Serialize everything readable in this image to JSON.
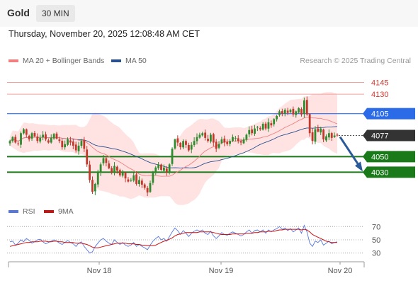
{
  "header": {
    "title": "Gold",
    "timeframe": "30 MIN"
  },
  "timestamp": "Thursday, November 20, 2025 12:08:48 AM CET",
  "legend": {
    "ma20_label": "MA 20 + Bollinger Bands",
    "ma50_label": "MA 50",
    "research": "Research © 2025 Trading Central",
    "rsi_label": "RSI",
    "ma9_label": "9MA"
  },
  "colors": {
    "ma20": "#f08080",
    "ma50": "#2a4f8f",
    "band_fill": "#ffe3e3",
    "candle_up": "#2e8b2e",
    "candle_down": "#c0392b",
    "resistance": "#d9322b",
    "pivot": "#2b6be8",
    "support": "#1a7a1a",
    "current": "#333333",
    "rsi": "#5577dd",
    "ma9": "#cc1111",
    "arrow": "#2a5a9a"
  },
  "chart_data": [
    {
      "type": "candlestick",
      "x_ticks": [
        "Nov 18",
        "Nov 19",
        "Nov 20"
      ],
      "price_levels": [
        {
          "label": "4145",
          "value": 4145,
          "kind": "resistance"
        },
        {
          "label": "4130",
          "value": 4130,
          "kind": "resistance"
        },
        {
          "label": "4105",
          "value": 4105,
          "kind": "pivot"
        },
        {
          "label": "4077",
          "value": 4077,
          "kind": "current"
        },
        {
          "label": "4050",
          "value": 4050,
          "kind": "support"
        },
        {
          "label": "4030",
          "value": 4030,
          "kind": "support"
        }
      ],
      "ylim": [
        3995,
        4160
      ],
      "forecast": {
        "from": 4077,
        "to": 4030
      },
      "close": [
        4070,
        4075,
        4068,
        4066,
        4080,
        4085,
        4078,
        4072,
        4080,
        4076,
        4070,
        4074,
        4078,
        4072,
        4068,
        4074,
        4079,
        4073,
        4070,
        4062,
        4066,
        4072,
        4068,
        4064,
        4058,
        4064,
        4070,
        4060,
        4040,
        4020,
        4005,
        4015,
        4030,
        4040,
        4048,
        4042,
        4035,
        4030,
        4038,
        4032,
        4026,
        4030,
        4022,
        4018,
        4020,
        4026,
        4015,
        4020,
        4014,
        4010,
        4004,
        4016,
        4030,
        4036,
        4040,
        4033,
        4036,
        4030,
        4040,
        4060,
        4072,
        4068,
        4062,
        4070,
        4065,
        4058,
        4065,
        4070,
        4075,
        4078,
        4080,
        4074,
        4070,
        4078,
        4068,
        4060,
        4066,
        4072,
        4068,
        4066,
        4070,
        4075,
        4074,
        4070,
        4068,
        4072,
        4078,
        4084,
        4080,
        4086,
        4088,
        4085,
        4092,
        4086,
        4094,
        4090,
        4098,
        4102,
        4108,
        4105,
        4110,
        4106,
        4110,
        4104,
        4108,
        4112,
        4104,
        4122,
        4104,
        4080,
        4070,
        4085,
        4082,
        4086,
        4072,
        4076,
        4080,
        4074,
        4077,
        4077
      ]
    },
    {
      "type": "line",
      "name": "RSI",
      "yticks": [
        70,
        50,
        30
      ],
      "ylim": [
        20,
        80
      ],
      "rsi": [
        47,
        48,
        42,
        45,
        50,
        47,
        52,
        49,
        45,
        47,
        50,
        51,
        47,
        44,
        46,
        48,
        50,
        48,
        45,
        43,
        46,
        49,
        46,
        44,
        40,
        45,
        47,
        40,
        35,
        30,
        32,
        40,
        45,
        50,
        52,
        48,
        45,
        43,
        50,
        46,
        43,
        46,
        42,
        40,
        42,
        46,
        40,
        43,
        40,
        38,
        35,
        42,
        48,
        52,
        55,
        50,
        52,
        48,
        55,
        62,
        68,
        64,
        58,
        64,
        60,
        55,
        60,
        63,
        65,
        63,
        65,
        60,
        58,
        63,
        56,
        52,
        56,
        61,
        58,
        57,
        60,
        62,
        60,
        58,
        56,
        58,
        62,
        65,
        60,
        64,
        65,
        62,
        65,
        60,
        65,
        62,
        65,
        67,
        70,
        66,
        68,
        64,
        67,
        62,
        65,
        68,
        60,
        72,
        62,
        45,
        40,
        48,
        46,
        50,
        42,
        45,
        48,
        44,
        46,
        47
      ],
      "ma9": [
        40,
        41,
        42,
        43,
        44,
        45,
        46,
        46,
        47,
        47,
        47,
        48,
        48,
        48,
        47,
        47,
        48,
        48,
        47,
        47,
        46,
        46,
        46,
        46,
        45,
        45,
        45,
        44,
        43,
        41,
        39,
        38,
        38,
        39,
        40,
        41,
        42,
        43,
        44,
        45,
        45,
        45,
        45,
        44,
        44,
        44,
        43,
        43,
        42,
        42,
        41,
        41,
        41,
        42,
        44,
        46,
        48,
        49,
        51,
        53,
        56,
        58,
        59,
        60,
        61,
        61,
        61,
        61,
        61,
        62,
        62,
        62,
        62,
        62,
        61,
        60,
        59,
        58,
        58,
        58,
        58,
        59,
        59,
        59,
        59,
        59,
        60,
        60,
        60,
        61,
        61,
        62,
        62,
        62,
        63,
        63,
        63,
        64,
        65,
        65,
        66,
        66,
        66,
        66,
        66,
        66,
        65,
        66,
        65,
        62,
        58,
        56,
        54,
        52,
        50,
        48,
        47,
        46,
        46,
        46
      ]
    }
  ]
}
